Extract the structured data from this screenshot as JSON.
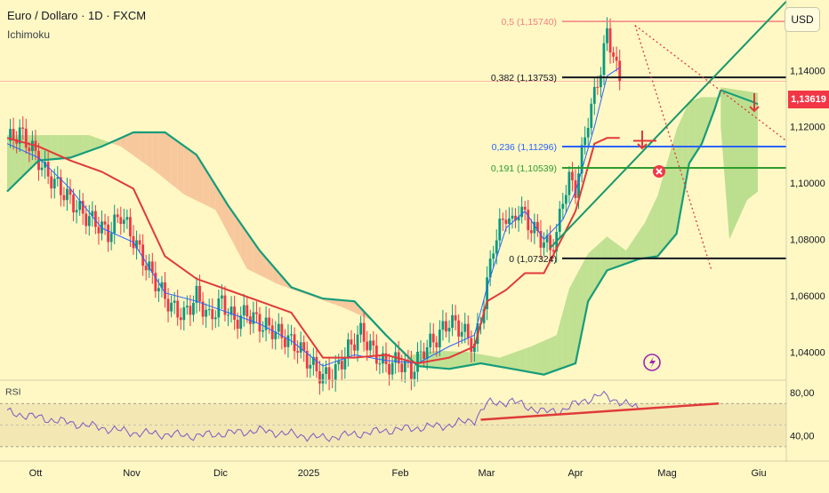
{
  "header": {
    "title": "Euro / Dollaro · 1D · FXCM",
    "indicator": "Ichimoku",
    "currency_button": "USD",
    "last_price": "1,13619"
  },
  "rsi": {
    "label": "RSI",
    "levels": [
      "80,00",
      "40,00"
    ]
  },
  "fib": [
    {
      "label": "0,5 (1,15740)",
      "value": 1.1574,
      "color": "#f28080"
    },
    {
      "label": "0,382 (1,13753)",
      "value": 1.13753,
      "color": "#131722"
    },
    {
      "label": "0,236 (1,11296)",
      "value": 1.11296,
      "color": "#2962ff"
    },
    {
      "label": "0,191 (1,10539)",
      "value": 1.10539,
      "color": "#2e9c2e"
    },
    {
      "label": "0 (1,07324)",
      "value": 1.07324,
      "color": "#131722"
    }
  ],
  "icons": [
    "cross-icon",
    "lightning-icon",
    "arrow-down-icon"
  ],
  "colors": {
    "background": "#fff8c4",
    "bullish": "#089981",
    "bearish": "#f23645",
    "kijun": "#e03a3a",
    "tenkan": "#2962ff",
    "span_b": "#159c7a",
    "cloud_bull": "#b5dc8a",
    "cloud_bear": "#f7bf96",
    "rsi_line": "#7e57c2"
  },
  "chart_data": {
    "type": "candlestick",
    "title": "Euro / Dollaro · 1D · FXCM",
    "x_ticks": [
      "Ott",
      "Nov",
      "Dic",
      "2025",
      "Feb",
      "Mar",
      "Apr",
      "Mag",
      "Giu"
    ],
    "y_ticks": [
      "1,14000",
      "1,12000",
      "1,10000",
      "1,08000",
      "1,06000",
      "1,04000"
    ],
    "ylim": [
      1.03,
      1.165
    ],
    "close_path": [
      [
        0,
        1.115
      ],
      [
        4,
        1.118
      ],
      [
        8,
        1.112
      ],
      [
        12,
        1.104
      ],
      [
        16,
        1.099
      ],
      [
        20,
        1.094
      ],
      [
        24,
        1.089
      ],
      [
        28,
        1.086
      ],
      [
        32,
        1.082
      ],
      [
        36,
        1.089
      ],
      [
        40,
        1.08
      ],
      [
        44,
        1.071
      ],
      [
        48,
        1.063
      ],
      [
        52,
        1.056
      ],
      [
        56,
        1.053
      ],
      [
        60,
        1.06
      ],
      [
        64,
        1.052
      ],
      [
        68,
        1.058
      ],
      [
        72,
        1.051
      ],
      [
        76,
        1.054
      ],
      [
        80,
        1.05
      ],
      [
        84,
        1.048
      ],
      [
        88,
        1.045
      ],
      [
        92,
        1.042
      ],
      [
        96,
        1.036
      ],
      [
        100,
        1.031
      ],
      [
        104,
        1.033
      ],
      [
        108,
        1.041
      ],
      [
        112,
        1.047
      ],
      [
        116,
        1.04
      ],
      [
        120,
        1.035
      ],
      [
        124,
        1.037
      ],
      [
        128,
        1.033
      ],
      [
        132,
        1.041
      ],
      [
        136,
        1.045
      ],
      [
        140,
        1.051
      ],
      [
        144,
        1.048
      ],
      [
        148,
        1.042
      ],
      [
        150,
        1.052
      ],
      [
        152,
        1.064
      ],
      [
        154,
        1.078
      ],
      [
        156,
        1.084
      ],
      [
        158,
        1.089
      ],
      [
        160,
        1.085
      ],
      [
        162,
        1.091
      ],
      [
        164,
        1.088
      ],
      [
        166,
        1.084
      ],
      [
        168,
        1.082
      ],
      [
        170,
        1.079
      ],
      [
        172,
        1.077
      ],
      [
        174,
        1.081
      ],
      [
        176,
        1.095
      ],
      [
        178,
        1.101
      ],
      [
        180,
        1.098
      ],
      [
        182,
        1.11
      ],
      [
        184,
        1.123
      ],
      [
        186,
        1.131
      ],
      [
        188,
        1.141
      ],
      [
        190,
        1.153
      ],
      [
        192,
        1.146
      ],
      [
        193,
        1.14
      ],
      [
        194,
        1.136
      ]
    ],
    "tenkan_sen": [
      [
        0,
        1.114
      ],
      [
        10,
        1.109
      ],
      [
        20,
        1.098
      ],
      [
        30,
        1.084
      ],
      [
        40,
        1.079
      ],
      [
        50,
        1.061
      ],
      [
        60,
        1.058
      ],
      [
        70,
        1.054
      ],
      [
        80,
        1.05
      ],
      [
        90,
        1.044
      ],
      [
        100,
        1.035
      ],
      [
        110,
        1.039
      ],
      [
        120,
        1.037
      ],
      [
        130,
        1.036
      ],
      [
        140,
        1.042
      ],
      [
        148,
        1.046
      ],
      [
        152,
        1.063
      ],
      [
        158,
        1.084
      ],
      [
        164,
        1.09
      ],
      [
        170,
        1.08
      ],
      [
        176,
        1.087
      ],
      [
        180,
        1.097
      ],
      [
        186,
        1.12
      ],
      [
        190,
        1.138
      ],
      [
        194,
        1.141
      ]
    ],
    "kijun_sen": [
      [
        0,
        1.116
      ],
      [
        10,
        1.113
      ],
      [
        20,
        1.108
      ],
      [
        30,
        1.104
      ],
      [
        40,
        1.098
      ],
      [
        50,
        1.074
      ],
      [
        60,
        1.066
      ],
      [
        70,
        1.062
      ],
      [
        80,
        1.058
      ],
      [
        90,
        1.054
      ],
      [
        100,
        1.038
      ],
      [
        110,
        1.038
      ],
      [
        120,
        1.039
      ],
      [
        130,
        1.036
      ],
      [
        140,
        1.038
      ],
      [
        148,
        1.042
      ],
      [
        152,
        1.058
      ],
      [
        158,
        1.062
      ],
      [
        164,
        1.068
      ],
      [
        170,
        1.068
      ],
      [
        176,
        1.081
      ],
      [
        180,
        1.09
      ],
      [
        186,
        1.114
      ],
      [
        190,
        1.116
      ],
      [
        194,
        1.116
      ]
    ],
    "span_b": [
      [
        0,
        1.097
      ],
      [
        10,
        1.108
      ],
      [
        20,
        1.109
      ],
      [
        30,
        1.113
      ],
      [
        40,
        1.118
      ],
      [
        50,
        1.118
      ],
      [
        60,
        1.11
      ],
      [
        70,
        1.092
      ],
      [
        80,
        1.076
      ],
      [
        90,
        1.063
      ],
      [
        100,
        1.059
      ],
      [
        110,
        1.058
      ],
      [
        120,
        1.046
      ],
      [
        130,
        1.035
      ],
      [
        140,
        1.034
      ],
      [
        150,
        1.036
      ],
      [
        160,
        1.034
      ],
      [
        170,
        1.032
      ],
      [
        180,
        1.036
      ],
      [
        184,
        1.058
      ],
      [
        190,
        1.069
      ],
      [
        200,
        1.073
      ],
      [
        206,
        1.074
      ],
      [
        212,
        1.082
      ],
      [
        216,
        1.107
      ],
      [
        220,
        1.114
      ],
      [
        224,
        1.126
      ],
      [
        226,
        1.133
      ]
    ],
    "rsi_values": [
      [
        0,
        62
      ],
      [
        20,
        52
      ],
      [
        40,
        43
      ],
      [
        60,
        40
      ],
      [
        80,
        45
      ],
      [
        100,
        38
      ],
      [
        120,
        45
      ],
      [
        140,
        50
      ],
      [
        148,
        55
      ],
      [
        152,
        70
      ],
      [
        160,
        72
      ],
      [
        170,
        62
      ],
      [
        176,
        64
      ],
      [
        182,
        72
      ],
      [
        188,
        78
      ],
      [
        194,
        72
      ],
      [
        200,
        65
      ]
    ],
    "rsi_trendline": [
      [
        150,
        55
      ],
      [
        222,
        70
      ]
    ],
    "price_trendline": [
      [
        172,
        1.077
      ],
      [
        240,
        1.165
      ]
    ]
  }
}
